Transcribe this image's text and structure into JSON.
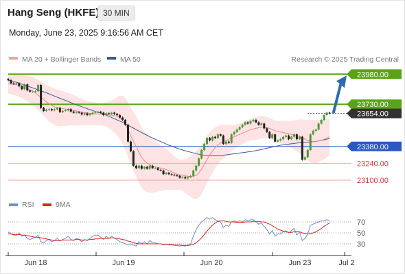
{
  "header": {
    "title": "Hang Seng (HKFE)",
    "timeframe": "30 MIN",
    "datetime": "Monday, June 23, 2025 9:16:56 AM CET"
  },
  "colors": {
    "resistance": "#5aa317",
    "pivot": "#2b59c3",
    "support": "#f4a2a2",
    "support_text": "#e03a3a",
    "current": "#333333",
    "arrow": "#2d6bb0",
    "ma20": "#f08888",
    "ma50": "#3c5a9a",
    "rsi": "#6f8fd8",
    "rsi_ma": "#dd2222",
    "bull_candle": "#4a9a3a",
    "bear_candle": "#222222"
  },
  "chart_data": [
    {
      "type": "candlestick",
      "title": "Hang Seng (HKFE)",
      "timeframe": "30 MIN",
      "legend": [
        {
          "name": "MA 20 + Bollinger Bands",
          "color": "#f08888"
        },
        {
          "name": "MA 50",
          "color": "#3c5a9a"
        }
      ],
      "credit": "Research © 2025 Trading Central",
      "x_ticks": [
        "Jun 18",
        "Jun 19",
        "Jun 20",
        "Jun 23",
        "Jul 2"
      ],
      "ylim": [
        23060,
        24050
      ],
      "levels": [
        {
          "value": 23980.0,
          "label": "23980.00",
          "kind": "resistance"
        },
        {
          "value": 23730.0,
          "label": "23730.00",
          "kind": "resistance"
        },
        {
          "value": 23654.0,
          "label": "23654.00",
          "kind": "current"
        },
        {
          "value": 23380.0,
          "label": "23380.00",
          "kind": "pivot"
        },
        {
          "value": 23240.0,
          "label": "23240.00",
          "kind": "support"
        },
        {
          "value": 23100.0,
          "label": "23100.00",
          "kind": "support"
        }
      ],
      "close": [
        23930,
        23905,
        23900,
        23905,
        23880,
        23855,
        23895,
        23845,
        23835,
        23835,
        23838,
        23890,
        23700,
        23675,
        23685,
        23690,
        23680,
        23688,
        23700,
        23665,
        23675,
        23680,
        23690,
        23670,
        23660,
        23665,
        23660,
        23645,
        23655,
        23640,
        23650,
        23660,
        23665,
        23668,
        23660,
        23640,
        23655,
        23650,
        23660,
        23650,
        23640,
        23620,
        23600,
        23560,
        23420,
        23340,
        23220,
        23200,
        23220,
        23195,
        23210,
        23195,
        23220,
        23200,
        23200,
        23185,
        23180,
        23150,
        23160,
        23150,
        23145,
        23140,
        23135,
        23120,
        23125,
        23115,
        23125,
        23135,
        23180,
        23220,
        23280,
        23350,
        23400,
        23450,
        23430,
        23460,
        23450,
        23480,
        23470,
        23400,
        23420,
        23410,
        23480,
        23500,
        23520,
        23540,
        23560,
        23580,
        23570,
        23590,
        23600,
        23580,
        23560,
        23570,
        23530,
        23500,
        23450,
        23480,
        23420,
        23430,
        23440,
        23460,
        23470,
        23440,
        23460,
        23480,
        23440,
        23460,
        23270,
        23290,
        23350,
        23480,
        23510,
        23520,
        23570,
        23600,
        23640,
        23660,
        23654
      ],
      "ma20": [
        23900,
        23898,
        23895,
        23892,
        23888,
        23880,
        23870,
        23860,
        23850,
        23840,
        23825,
        23805,
        23790,
        23770,
        23750,
        23735,
        23720,
        23710,
        23700,
        23698,
        23695,
        23690,
        23688,
        23685,
        23680,
        23675,
        23670,
        23665,
        23660,
        23658,
        23655,
        23652,
        23650,
        23650,
        23648,
        23646,
        23645,
        23642,
        23640,
        23635,
        23630,
        23620,
        23600,
        23570,
        23520,
        23470,
        23420,
        23380,
        23330,
        23290,
        23260,
        23240,
        23225,
        23215,
        23210,
        23205,
        23200,
        23195,
        23190,
        23180,
        23170,
        23160,
        23150,
        23145,
        23140,
        23135,
        23132,
        23130,
        23132,
        23140,
        23160,
        23190,
        23230,
        23270,
        23310,
        23340,
        23370,
        23390,
        23410,
        23420,
        23430,
        23440,
        23450,
        23460,
        23470,
        23480,
        23490,
        23500,
        23510,
        23520,
        23525,
        23530,
        23535,
        23540,
        23540,
        23535,
        23530,
        23520,
        23510,
        23505,
        23500,
        23495,
        23490,
        23485,
        23480,
        23475,
        23470,
        23465,
        23455,
        23440,
        23430,
        23425,
        23420,
        23420,
        23425,
        23430,
        23440,
        23450,
        23460
      ],
      "ma50": [
        23930,
        23925,
        23920,
        23913,
        23905,
        23897,
        23890,
        23882,
        23874,
        23866,
        23858,
        23850,
        23842,
        23834,
        23825,
        23816,
        23807,
        23798,
        23789,
        23780,
        23771,
        23762,
        23753,
        23744,
        23735,
        23726,
        23718,
        23710,
        23702,
        23694,
        23686,
        23678,
        23670,
        23663,
        23656,
        23648,
        23640,
        23630,
        23620,
        23610,
        23600,
        23590,
        23580,
        23568,
        23556,
        23544,
        23532,
        23520,
        23508,
        23496,
        23484,
        23472,
        23460,
        23450,
        23440,
        23430,
        23420,
        23410,
        23400,
        23390,
        23382,
        23374,
        23366,
        23358,
        23350,
        23344,
        23338,
        23332,
        23326,
        23320,
        23315,
        23310,
        23307,
        23305,
        23303,
        23302,
        23302,
        23303,
        23305,
        23307,
        23310,
        23313,
        23316,
        23319,
        23322,
        23325,
        23328,
        23331,
        23334,
        23337,
        23340,
        23345,
        23350,
        23355,
        23360,
        23365,
        23370,
        23375,
        23380,
        23385,
        23390,
        23393,
        23396,
        23399,
        23402,
        23405,
        23408,
        23410,
        23412,
        23414,
        23416,
        23418,
        23420,
        23422,
        23425,
        23430,
        23435,
        23440,
        23445
      ],
      "bb_width": [
        80,
        85,
        88,
        92,
        95,
        98,
        100,
        105,
        110,
        115,
        120,
        125,
        130,
        135,
        140,
        145,
        148,
        150,
        152,
        150,
        145,
        140,
        135,
        130,
        125,
        120,
        115,
        110,
        105,
        100,
        98,
        96,
        94,
        92,
        92,
        94,
        100,
        110,
        125,
        140,
        160,
        180,
        200,
        215,
        225,
        235,
        245,
        250,
        250,
        248,
        245,
        240,
        230,
        220,
        210,
        200,
        190,
        180,
        170,
        160,
        150,
        140,
        130,
        125,
        130,
        140,
        155,
        170,
        185,
        200,
        205,
        205,
        200,
        195,
        190,
        180,
        170,
        160,
        150,
        140,
        130,
        120,
        110,
        100,
        95,
        92,
        90,
        88,
        88,
        90,
        92,
        95,
        95,
        95,
        92,
        90,
        88,
        85,
        85,
        88,
        90,
        95,
        100,
        105,
        110,
        120,
        130,
        140,
        150,
        160,
        170,
        175,
        180,
        180,
        175,
        170,
        165,
        160,
        155
      ],
      "rsi": {
        "name": "RSI",
        "ticks": [
          70,
          50,
          30
        ],
        "values": [
          52,
          48,
          46,
          45,
          50,
          44,
          46,
          40,
          38,
          40,
          42,
          46,
          34,
          32,
          36,
          38,
          34,
          36,
          40,
          35,
          38,
          40,
          44,
          38,
          36,
          40,
          38,
          34,
          38,
          36,
          40,
          44,
          46,
          46,
          42,
          38,
          44,
          40,
          44,
          40,
          38,
          34,
          32,
          30,
          28,
          30,
          28,
          26,
          34,
          30,
          34,
          30,
          36,
          32,
          32,
          30,
          30,
          28,
          30,
          28,
          28,
          27,
          27,
          26,
          27,
          26,
          28,
          30,
          44,
          56,
          64,
          70,
          74,
          78,
          75,
          78,
          74,
          72,
          70,
          60,
          64,
          62,
          70,
          72,
          70,
          72,
          70,
          74,
          72,
          74,
          74,
          70,
          66,
          68,
          62,
          56,
          48,
          54,
          44,
          48,
          48,
          52,
          54,
          50,
          54,
          58,
          46,
          52,
          36,
          40,
          48,
          64,
          66,
          68,
          70,
          72,
          72,
          74,
          72
        ]
      },
      "rsi_ma": {
        "name": "9MA",
        "values": [
          48,
          48,
          47,
          47,
          47,
          46,
          46,
          45,
          44,
          43,
          42,
          42,
          41,
          40,
          39,
          38,
          37,
          36,
          36,
          36,
          37,
          37,
          37,
          37,
          37,
          38,
          38,
          37,
          37,
          37,
          38,
          38,
          39,
          39,
          40,
          40,
          40,
          40,
          41,
          41,
          40,
          39,
          38,
          37,
          35,
          34,
          32,
          31,
          30,
          30,
          30,
          30,
          30,
          30,
          30,
          30,
          30,
          29,
          29,
          29,
          29,
          28,
          28,
          28,
          27,
          27,
          27,
          28,
          29,
          32,
          36,
          41,
          47,
          53,
          59,
          64,
          68,
          71,
          72,
          72,
          71,
          70,
          70,
          70,
          69,
          69,
          69,
          70,
          70,
          70,
          71,
          71,
          71,
          70,
          70,
          68,
          66,
          63,
          60,
          57,
          55,
          53,
          52,
          51,
          51,
          52,
          53,
          52,
          50,
          49,
          48,
          49,
          50,
          52,
          55,
          58,
          62,
          65,
          68
        ]
      }
    }
  ]
}
